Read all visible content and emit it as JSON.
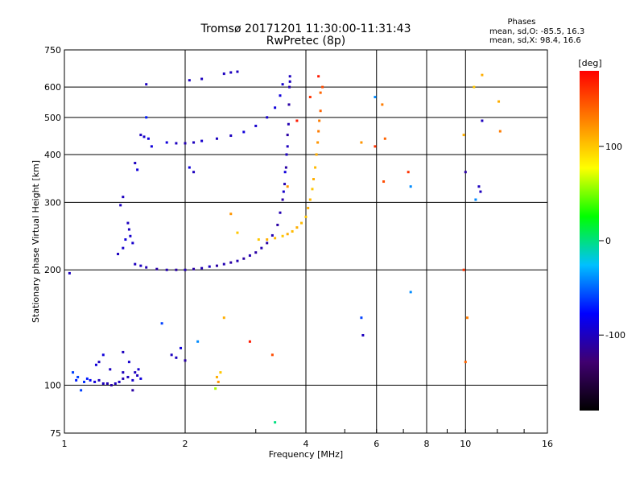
{
  "chart_data": {
    "type": "scatter",
    "title": "Tromsø 20171201 11:30:00-11:31:43",
    "subtitle": "RwPretec (8p)",
    "xlabel": "Frequency [MHz]",
    "ylabel": "Stationary phase Virtual Height [km]",
    "x_scale": "log2",
    "y_scale": "log",
    "xlim": [
      1,
      16
    ],
    "ylim": [
      75,
      750
    ],
    "x_ticks": [
      1,
      2,
      4,
      6,
      8,
      10,
      16
    ],
    "x_tick_labels": [
      "1",
      "2",
      "4",
      "6",
      "8",
      "10",
      "16"
    ],
    "y_ticks": [
      75,
      100,
      200,
      300,
      400,
      500,
      600,
      750
    ],
    "y_tick_labels": [
      "75",
      "100",
      "200",
      "300",
      "400",
      "500",
      "600",
      "750"
    ],
    "grid": true,
    "colorbar": {
      "label": "[deg]",
      "range": [
        -180,
        180
      ],
      "ticks": [
        100,
        0,
        -100
      ],
      "tick_labels": [
        "100",
        "0",
        "-100"
      ],
      "colors": [
        "#000000",
        "#400070",
        "#0000ff",
        "#00c0ff",
        "#00ff00",
        "#ffff00",
        "#ff8000",
        "#ff0000"
      ]
    },
    "legend": {
      "title": "Phases",
      "line_o": "mean, sd,O: -85.5, 16.3",
      "line_x": "mean, sd,X:  98.4, 16.6"
    },
    "series": [
      {
        "points": [
          [
            1.03,
            196,
            -100
          ],
          [
            1.05,
            108,
            -60
          ],
          [
            1.07,
            103,
            -70
          ],
          [
            1.08,
            105,
            -60
          ],
          [
            1.1,
            97,
            -60
          ],
          [
            1.12,
            102,
            -65
          ],
          [
            1.14,
            104,
            -70
          ],
          [
            1.16,
            103,
            -80
          ],
          [
            1.19,
            102,
            -90
          ],
          [
            1.22,
            103,
            -100
          ],
          [
            1.25,
            101,
            -100
          ],
          [
            1.28,
            101,
            -105
          ],
          [
            1.31,
            100,
            -110
          ],
          [
            1.34,
            101,
            -100
          ],
          [
            1.37,
            102,
            -100
          ],
          [
            1.4,
            104,
            -105
          ],
          [
            1.44,
            105,
            -100
          ],
          [
            1.48,
            103,
            -95
          ],
          [
            1.52,
            106,
            -100
          ],
          [
            1.55,
            104,
            -90
          ],
          [
            1.2,
            113,
            -90
          ],
          [
            1.3,
            110,
            -100
          ],
          [
            1.4,
            108,
            -100
          ],
          [
            1.5,
            108,
            -100
          ],
          [
            1.53,
            110,
            -95
          ],
          [
            1.48,
            97,
            -110
          ],
          [
            1.5,
            207,
            -100
          ],
          [
            1.55,
            205,
            -100
          ],
          [
            1.6,
            203,
            -105
          ],
          [
            1.7,
            201,
            -110
          ],
          [
            1.8,
            200,
            -105
          ],
          [
            1.9,
            200,
            -110
          ],
          [
            2.0,
            200,
            -105
          ],
          [
            2.1,
            201,
            -110
          ],
          [
            2.2,
            202,
            -105
          ],
          [
            2.3,
            204,
            -100
          ],
          [
            2.4,
            205,
            -110
          ],
          [
            2.5,
            207,
            -105
          ],
          [
            2.6,
            209,
            -110
          ],
          [
            2.7,
            211,
            -105
          ],
          [
            2.8,
            214,
            -110
          ],
          [
            2.9,
            218,
            -105
          ],
          [
            3.0,
            222,
            -110
          ],
          [
            3.1,
            228,
            -105
          ],
          [
            3.2,
            235,
            -110
          ],
          [
            3.3,
            246,
            -105
          ],
          [
            3.4,
            262,
            -110
          ],
          [
            3.45,
            282,
            -105
          ],
          [
            3.5,
            305,
            -110
          ],
          [
            3.54,
            335,
            -105
          ],
          [
            3.57,
            370,
            -110
          ],
          [
            3.6,
            420,
            -100
          ],
          [
            3.62,
            480,
            -105
          ],
          [
            3.63,
            540,
            -110
          ],
          [
            3.64,
            600,
            -105
          ],
          [
            3.65,
            620,
            -100
          ],
          [
            3.65,
            640,
            -100
          ],
          [
            3.55,
            360,
            -90
          ],
          [
            3.52,
            320,
            -95
          ],
          [
            3.58,
            400,
            -100
          ],
          [
            3.6,
            450,
            -110
          ],
          [
            1.8,
            430,
            -90
          ],
          [
            1.9,
            428,
            -100
          ],
          [
            2.0,
            428,
            -105
          ],
          [
            2.1,
            430,
            -100
          ],
          [
            2.2,
            434,
            -95
          ],
          [
            2.4,
            440,
            -100
          ],
          [
            2.6,
            448,
            -100
          ],
          [
            2.8,
            458,
            -90
          ],
          [
            3.0,
            475,
            -95
          ],
          [
            3.2,
            500,
            -95
          ],
          [
            3.35,
            530,
            -90
          ],
          [
            3.45,
            570,
            -90
          ],
          [
            3.5,
            610,
            -95
          ],
          [
            2.5,
            650,
            -100
          ],
          [
            2.6,
            655,
            -100
          ],
          [
            2.7,
            658,
            -100
          ],
          [
            2.2,
            630,
            -100
          ],
          [
            2.05,
            625,
            -100
          ],
          [
            1.6,
            500,
            -70
          ],
          [
            1.6,
            610,
            -100
          ],
          [
            1.55,
            450,
            -100
          ],
          [
            1.58,
            445,
            -95
          ],
          [
            1.62,
            440,
            -90
          ],
          [
            1.65,
            420,
            -90
          ],
          [
            1.5,
            380,
            -100
          ],
          [
            1.52,
            365,
            -90
          ],
          [
            1.4,
            310,
            -100
          ],
          [
            1.38,
            295,
            -100
          ],
          [
            1.44,
            265,
            -100
          ],
          [
            1.46,
            245,
            -95
          ],
          [
            1.48,
            235,
            -95
          ],
          [
            1.36,
            220,
            -100
          ],
          [
            1.4,
            228,
            -95
          ],
          [
            1.42,
            240,
            -90
          ],
          [
            1.45,
            255,
            -100
          ]
        ]
      },
      {
        "points": [
          [
            3.05,
            240,
            100
          ],
          [
            3.2,
            240,
            110
          ],
          [
            3.35,
            242,
            105
          ],
          [
            3.5,
            245,
            100
          ],
          [
            3.6,
            248,
            110
          ],
          [
            3.7,
            252,
            105
          ],
          [
            3.8,
            258,
            110
          ],
          [
            3.9,
            265,
            105
          ],
          [
            4.0,
            275,
            100
          ],
          [
            4.05,
            290,
            110
          ],
          [
            4.1,
            305,
            105
          ],
          [
            4.15,
            325,
            100
          ],
          [
            4.18,
            345,
            110
          ],
          [
            4.22,
            370,
            105
          ],
          [
            4.25,
            400,
            110
          ],
          [
            4.28,
            430,
            120
          ],
          [
            4.3,
            460,
            130
          ],
          [
            4.32,
            490,
            130
          ],
          [
            4.35,
            520,
            140
          ],
          [
            4.35,
            580,
            140
          ],
          [
            4.4,
            600,
            150
          ],
          [
            4.3,
            640,
            170
          ],
          [
            4.1,
            565,
            160
          ],
          [
            3.8,
            490,
            170
          ],
          [
            3.6,
            330,
            120
          ],
          [
            2.4,
            105,
            110
          ],
          [
            2.42,
            102,
            120
          ],
          [
            2.45,
            108,
            100
          ],
          [
            2.38,
            98,
            60
          ],
          [
            2.5,
            150,
            110
          ],
          [
            2.9,
            130,
            170
          ],
          [
            3.3,
            120,
            150
          ],
          [
            3.35,
            80,
            0
          ],
          [
            2.7,
            250,
            100
          ],
          [
            2.6,
            280,
            120
          ]
        ]
      },
      {
        "points": [
          [
            5.5,
            150,
            -60
          ],
          [
            5.55,
            135,
            -100
          ],
          [
            5.5,
            430,
            120
          ],
          [
            5.95,
            420,
            160
          ],
          [
            6.2,
            540,
            130
          ],
          [
            6.25,
            340,
            150
          ],
          [
            6.3,
            440,
            140
          ],
          [
            5.95,
            565,
            -40
          ],
          [
            7.2,
            360,
            160
          ],
          [
            7.3,
            330,
            -40
          ],
          [
            7.3,
            175,
            -40
          ],
          [
            9.9,
            450,
            110
          ],
          [
            10.0,
            360,
            -110
          ],
          [
            10.1,
            150,
            130
          ],
          [
            10.0,
            115,
            140
          ],
          [
            9.9,
            200,
            160
          ],
          [
            10.6,
            305,
            -40
          ],
          [
            10.8,
            330,
            -100
          ],
          [
            10.9,
            320,
            -100
          ],
          [
            11.0,
            490,
            -100
          ],
          [
            11.0,
            645,
            110
          ],
          [
            12.1,
            550,
            110
          ],
          [
            12.2,
            460,
            130
          ],
          [
            10.5,
            600,
            100
          ],
          [
            2.05,
            370,
            -90
          ],
          [
            2.1,
            360,
            -100
          ],
          [
            1.85,
            120,
            -100
          ],
          [
            1.9,
            118,
            -100
          ],
          [
            1.95,
            125,
            -90
          ],
          [
            2.0,
            116,
            -110
          ],
          [
            1.75,
            145,
            -60
          ],
          [
            2.15,
            130,
            -40
          ],
          [
            1.4,
            122,
            -100
          ],
          [
            1.45,
            115,
            -95
          ],
          [
            1.25,
            120,
            -90
          ],
          [
            1.22,
            115,
            -100
          ]
        ]
      }
    ]
  }
}
